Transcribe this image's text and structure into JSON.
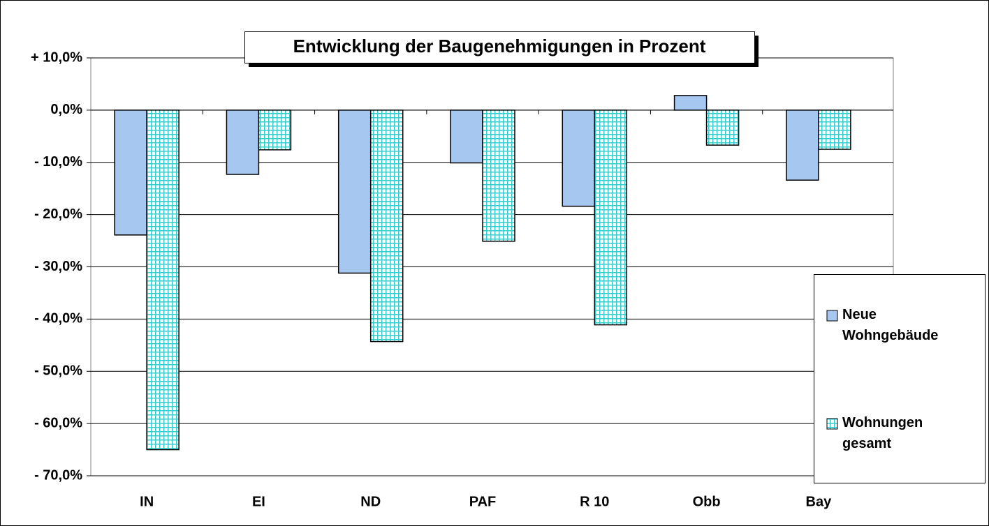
{
  "chart_data": {
    "type": "bar",
    "title": "Entwicklung der Baugenehmigungen in Prozent",
    "categories": [
      "IN",
      "EI",
      "ND",
      "PAF",
      "R 10",
      "Obb",
      "Bay"
    ],
    "series": [
      {
        "name": "Neue Wohngebäude",
        "color": "#a6c8f0",
        "values": [
          -23.9,
          -12.3,
          -31.2,
          -10.1,
          -18.4,
          2.8,
          -13.4
        ]
      },
      {
        "name": "Wohnungen gesamt",
        "color": "#33cccc",
        "values": [
          -65.0,
          -7.6,
          -44.3,
          -25.1,
          -41.1,
          -6.7,
          -7.5
        ]
      }
    ],
    "ylim": [
      -70,
      10
    ],
    "yticks": [
      {
        "value": 10,
        "label": "+ 10,0%"
      },
      {
        "value": 0,
        "label": "0,0%"
      },
      {
        "value": -10,
        "label": "- 10,0%"
      },
      {
        "value": -20,
        "label": "- 20,0%"
      },
      {
        "value": -30,
        "label": "- 30,0%"
      },
      {
        "value": -40,
        "label": "- 40,0%"
      },
      {
        "value": -50,
        "label": "- 50,0%"
      },
      {
        "value": -60,
        "label": "- 60,0%"
      },
      {
        "value": -70,
        "label": "- 70,0%"
      }
    ],
    "grid": true,
    "legend": "right"
  }
}
